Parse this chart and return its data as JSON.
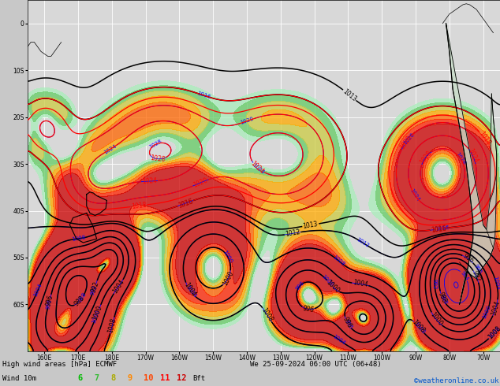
{
  "title_line1": "High wind areas [hPa] ECMWF",
  "title_line2": "We 25-09-2024 06:00 UTC (06+48)",
  "credit": "©weatheronline.co.uk",
  "legend_label": "Wind 10m",
  "bft_nums": [
    "6",
    "7",
    "8",
    "9",
    "10",
    "11",
    "12"
  ],
  "bft_text_colors": [
    "#00bb00",
    "#33bb33",
    "#aaaa00",
    "#ff8800",
    "#ff4400",
    "#ff0000",
    "#cc0000"
  ],
  "background_color": "#c8c8c8",
  "map_background": "#d8d8d8",
  "isobar_blue": "#0000ff",
  "isobar_black": "#000000",
  "isobar_red": "#ff0000",
  "wind_fill_colors": [
    "#aaeebb",
    "#55cc55",
    "#aacc00",
    "#ffcc00",
    "#ff8800",
    "#ff3300",
    "#cc0000"
  ],
  "fig_width": 6.34,
  "fig_height": 4.9,
  "dpi": 100,
  "lon_min": 155,
  "lon_max": 295,
  "lat_min": -70,
  "lat_max": 5,
  "lon_tick_step": 10,
  "lat_tick_step": 10
}
